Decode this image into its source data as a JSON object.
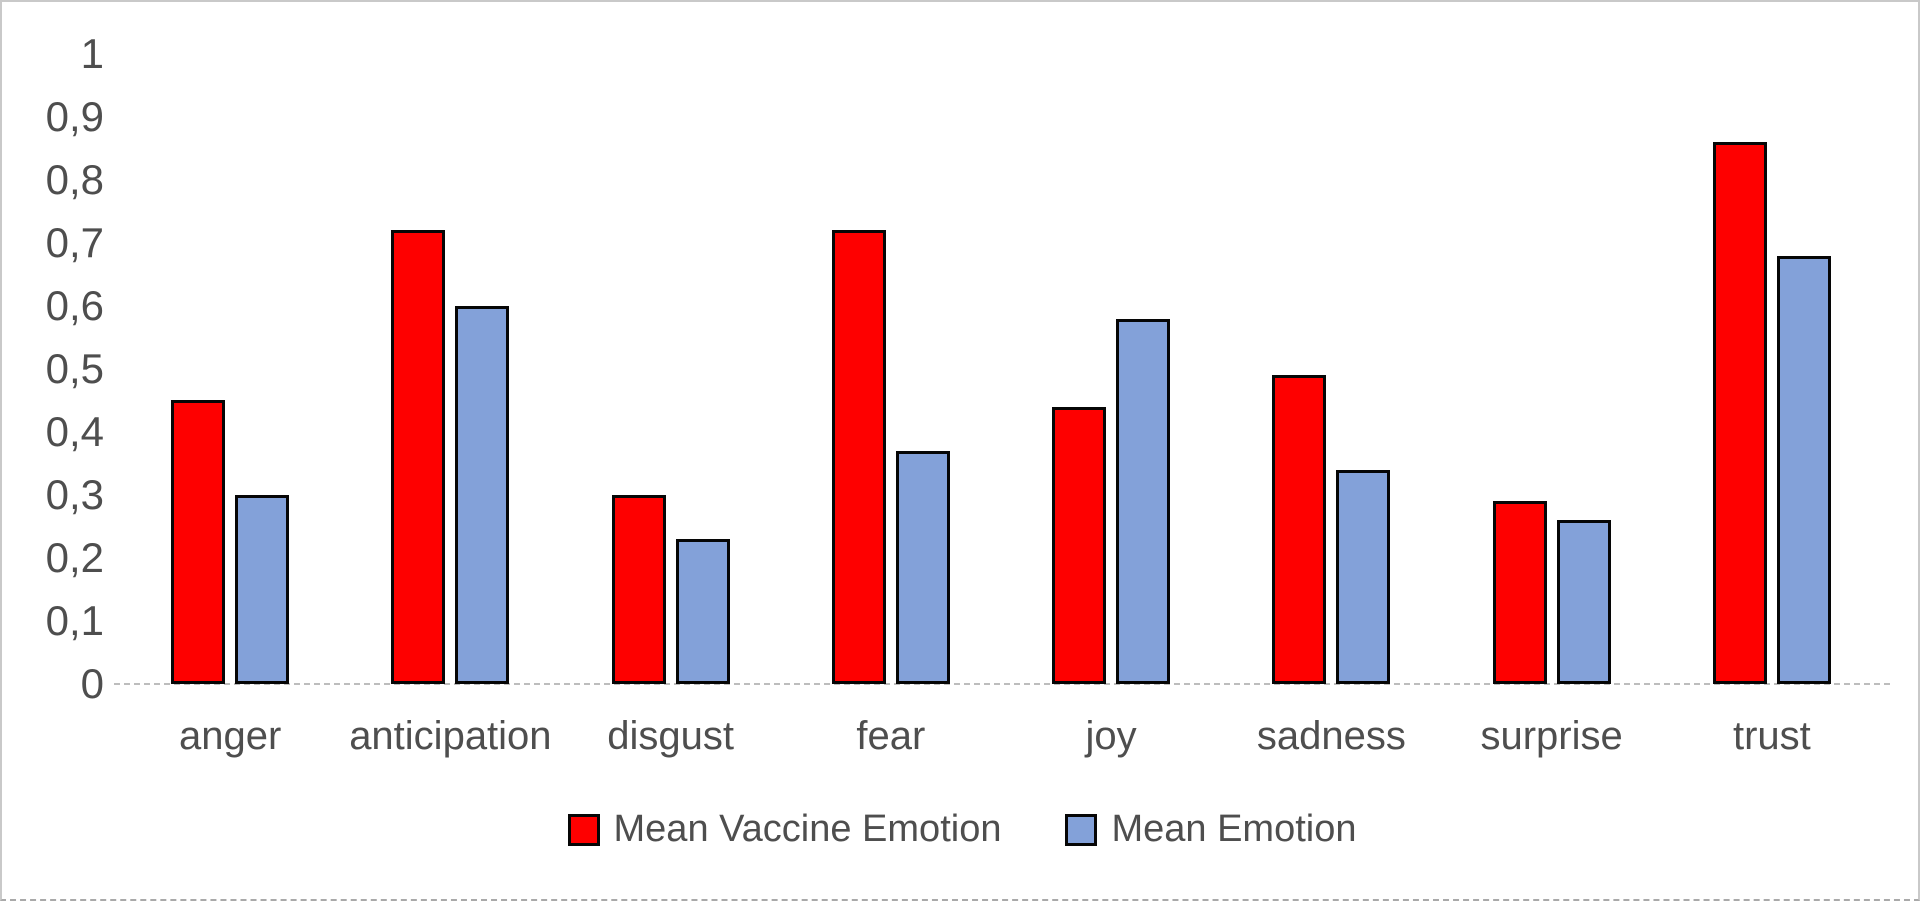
{
  "chart_data": {
    "type": "bar",
    "title": "",
    "xlabel": "",
    "ylabel": "",
    "categories": [
      "anger",
      "anticipation",
      "disgust",
      "fear",
      "joy",
      "sadness",
      "surprise",
      "trust"
    ],
    "series": [
      {
        "name": "Mean Vaccine Emotion",
        "color": "#fe0000",
        "values": [
          0.45,
          0.72,
          0.3,
          0.72,
          0.44,
          0.49,
          0.29,
          0.86
        ]
      },
      {
        "name": "Mean Emotion",
        "color": "#83a1d9",
        "values": [
          0.3,
          0.6,
          0.23,
          0.37,
          0.58,
          0.34,
          0.26,
          0.68
        ]
      }
    ],
    "ylim": [
      0,
      1
    ],
    "y_ticks": [
      {
        "label": "1",
        "value": 1.0
      },
      {
        "label": "0,9",
        "value": 0.9
      },
      {
        "label": "0,8",
        "value": 0.8
      },
      {
        "label": "0,7",
        "value": 0.7
      },
      {
        "label": "0,6",
        "value": 0.6
      },
      {
        "label": "0,5",
        "value": 0.5
      },
      {
        "label": "0,4",
        "value": 0.4
      },
      {
        "label": "0,3",
        "value": 0.3
      },
      {
        "label": "0,2",
        "value": 0.2
      },
      {
        "label": "0,1",
        "value": 0.1
      },
      {
        "label": "0",
        "value": 0.0
      }
    ],
    "grid": false,
    "legend_position": "bottom",
    "decimal_separator": ","
  },
  "colors": {
    "axis_text": "#4e4e4e",
    "bar_border": "#060606",
    "baseline": "#bdbdbd",
    "background": "#ffffff"
  }
}
